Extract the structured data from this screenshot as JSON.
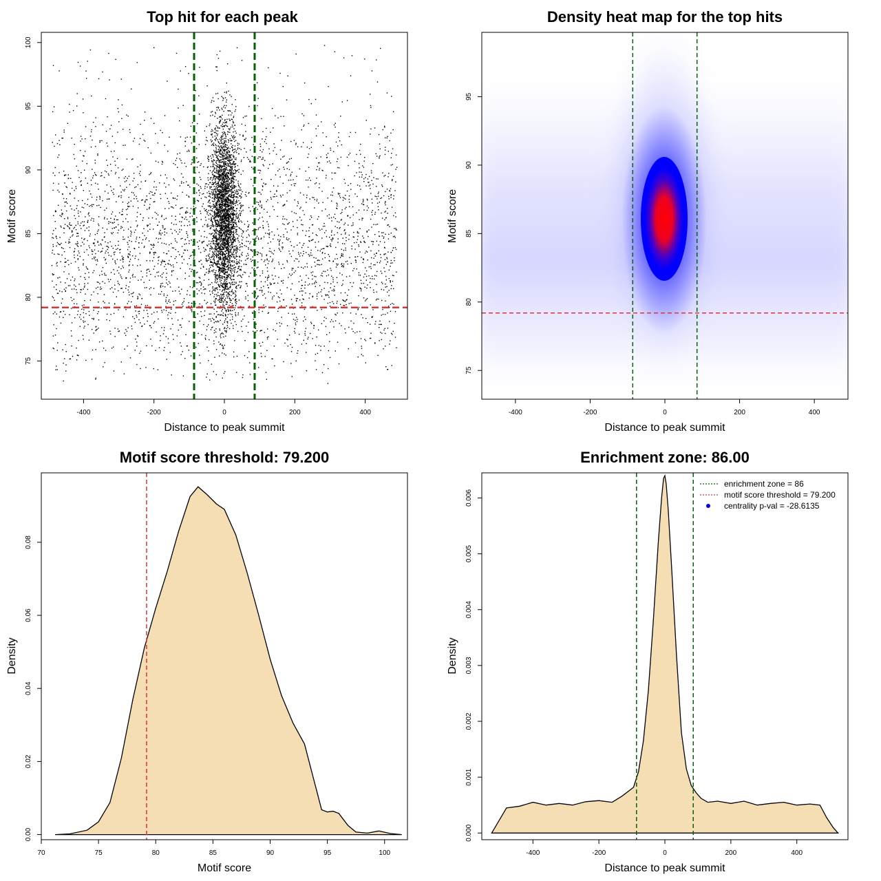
{
  "chart_data": [
    {
      "type": "scatter",
      "title": "Top hit for each peak",
      "xlabel": "Distance to peak summit",
      "ylabel": "Motif score",
      "xlim": [
        -520,
        520
      ],
      "ylim": [
        72,
        100.8
      ],
      "xticks": [
        "-400",
        "-200",
        "0",
        "200",
        "400"
      ],
      "yticks": [
        "75",
        "80",
        "85",
        "90",
        "95",
        "100"
      ],
      "background_sampling": {
        "x_range": [
          -490,
          490
        ],
        "y_range": [
          73,
          95.5
        ],
        "y_mode": 83.5
      },
      "central_cluster": {
        "x_center": 0,
        "x_spread_sd": 20,
        "y_center": 86.5,
        "y_spread_sd": 3.8,
        "y_max": 99.7
      },
      "enrichment_zone": [
        -86,
        86
      ],
      "score_threshold": 79.2,
      "colors": {
        "points": "#000000",
        "zone_lines": "#006400",
        "threshold_line": "#dd3333"
      }
    },
    {
      "type": "heatmap",
      "title": "Density heat map for the top hits",
      "xlabel": "Distance to peak summit",
      "ylabel": "Motif score",
      "xlim": [
        -490,
        490
      ],
      "ylim": [
        72.9,
        99.7
      ],
      "xticks": [
        "-400",
        "-200",
        "0",
        "200",
        "400"
      ],
      "yticks": [
        "75",
        "80",
        "85",
        "90",
        "95"
      ],
      "peak": {
        "x": 0,
        "y": 85.5
      },
      "color_scale": [
        "#ffffff",
        "#0000ff",
        "#ff0000"
      ],
      "enrichment_zone": [
        -86,
        86
      ],
      "score_threshold": 79.2,
      "colors": {
        "zone_lines": "#006400",
        "threshold_line": "#dd3333"
      }
    },
    {
      "type": "area",
      "title": "Motif score threshold: 79.200",
      "xlabel": "Motif score",
      "ylabel": "Density",
      "xlim": [
        70,
        102
      ],
      "ylim": [
        -0.0014,
        0.099
      ],
      "xticks": [
        "70",
        "75",
        "80",
        "85",
        "90",
        "95",
        "100"
      ],
      "yticks": [
        "0.00",
        "0.02",
        "0.04",
        "0.06",
        "0.08"
      ],
      "x": [
        71.2,
        72.5,
        74.0,
        75.0,
        76.0,
        77.0,
        78.0,
        79.0,
        80.0,
        81.0,
        82.0,
        83.0,
        83.7,
        84.5,
        85.3,
        86.0,
        87.0,
        88.0,
        89.0,
        90.0,
        91.0,
        92.0,
        93.0,
        94.0,
        94.5,
        95.0,
        95.5,
        96.0,
        96.8,
        97.5,
        98.5,
        99.5,
        100.5,
        101.5
      ],
      "y": [
        0.0,
        0.0002,
        0.0012,
        0.0035,
        0.0088,
        0.021,
        0.037,
        0.051,
        0.062,
        0.072,
        0.083,
        0.0925,
        0.0952,
        0.093,
        0.0905,
        0.089,
        0.082,
        0.0715,
        0.06,
        0.048,
        0.038,
        0.0305,
        0.0248,
        0.0128,
        0.0068,
        0.0062,
        0.0064,
        0.0058,
        0.0025,
        0.0007,
        0.0004,
        0.001,
        0.0003,
        0.0
      ],
      "threshold_line": 79.2,
      "colors": {
        "fill": "#f5deb3",
        "outline": "#000000",
        "threshold_line": "#dd3333"
      }
    },
    {
      "type": "area",
      "title": "Enrichment zone: 86.00",
      "xlabel": "Distance to peak summit",
      "ylabel": "Density",
      "xlim": [
        -555,
        555
      ],
      "ylim": [
        -0.00012,
        0.00645
      ],
      "xticks": [
        "-400",
        "-200",
        "0",
        "200",
        "400"
      ],
      "yticks": [
        "0.000",
        "0.001",
        "0.002",
        "0.003",
        "0.004",
        "0.005",
        "0.006"
      ],
      "x": [
        -525,
        -510,
        -480,
        -440,
        -400,
        -360,
        -320,
        -280,
        -240,
        -200,
        -160,
        -130,
        -110,
        -95,
        -80,
        -65,
        -50,
        -35,
        -20,
        -10,
        -4,
        0,
        4,
        10,
        20,
        35,
        50,
        65,
        80,
        95,
        110,
        130,
        160,
        200,
        240,
        280,
        320,
        360,
        400,
        440,
        470,
        490,
        510,
        525
      ],
      "y": [
        0.0,
        0.00015,
        0.00045,
        0.00048,
        0.00055,
        0.0005,
        0.00053,
        0.0005,
        0.00056,
        0.00058,
        0.00055,
        0.00066,
        0.00075,
        0.00082,
        0.0011,
        0.00165,
        0.00255,
        0.0038,
        0.0052,
        0.006,
        0.00635,
        0.0064,
        0.00625,
        0.0058,
        0.0048,
        0.0032,
        0.0018,
        0.00115,
        0.00085,
        0.00072,
        0.00062,
        0.00055,
        0.00057,
        0.00053,
        0.00057,
        0.0005,
        0.00053,
        0.00055,
        0.0005,
        0.00052,
        0.0005,
        0.00028,
        0.0001,
        0.0
      ],
      "zone_lines": [
        -86,
        86
      ],
      "legend": [
        {
          "label": "enrichment zone = 86",
          "symbol": "dotted-line",
          "color": "#006400"
        },
        {
          "label": "motif score threshold = 79.200",
          "symbol": "dotted-line",
          "color": "#dd3333"
        },
        {
          "label": "centrality p-val = -28.6135",
          "symbol": "dot",
          "color": "#0000ee"
        }
      ],
      "legend_position": "top-right",
      "colors": {
        "fill": "#f5deb3",
        "outline": "#000000",
        "zone_lines": "#006400"
      }
    }
  ]
}
